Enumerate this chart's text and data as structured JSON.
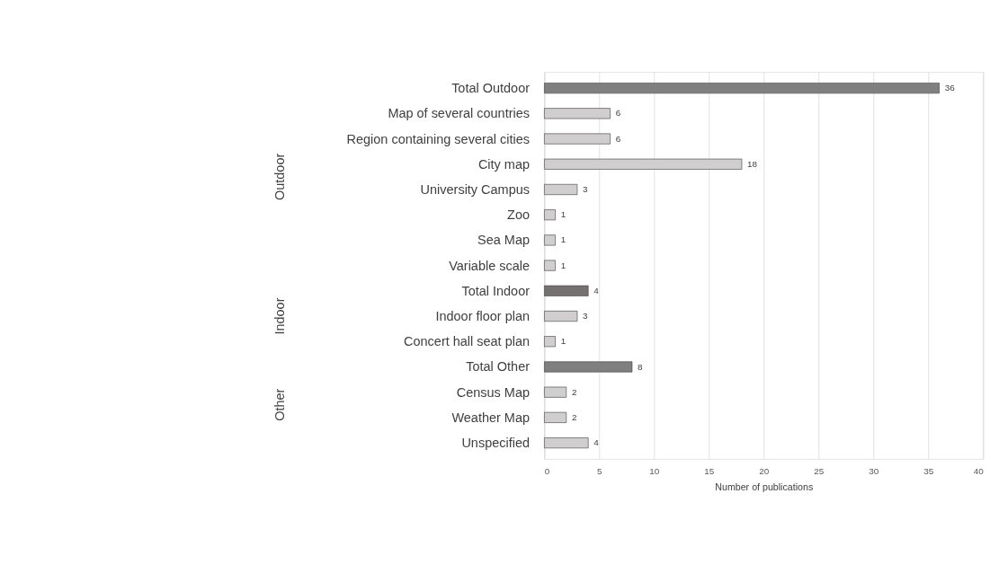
{
  "chart_data": {
    "type": "bar",
    "orientation": "horizontal",
    "xlabel": "Number of publications",
    "categories": [
      "Total Outdoor",
      "Map of several countries",
      "Region containing several cities",
      "City map",
      "University Campus",
      "Zoo",
      "Sea Map",
      "Variable scale",
      "Total Indoor",
      "Indoor floor plan",
      "Concert hall seat plan",
      "Total Other",
      "Census Map",
      "Weather Map",
      "Unspecified"
    ],
    "values": [
      36,
      6,
      6,
      18,
      3,
      1,
      1,
      1,
      4,
      3,
      1,
      8,
      2,
      2,
      4
    ],
    "colors": [
      "#7f7f7f",
      "#d0cece",
      "#d0cece",
      "#d0cece",
      "#d0cece",
      "#d0cece",
      "#d0cece",
      "#d0cece",
      "#767171",
      "#d0cece",
      "#d0cece",
      "#7f7f7f",
      "#d0cece",
      "#d0cece",
      "#d0cece"
    ],
    "xlim": [
      0,
      40
    ],
    "xticks": [
      0,
      5,
      10,
      15,
      20,
      25,
      30,
      35,
      40
    ],
    "grid": "x",
    "data_labels": true,
    "annotations": [
      "Outdoor",
      "Indoor",
      "Other"
    ]
  }
}
